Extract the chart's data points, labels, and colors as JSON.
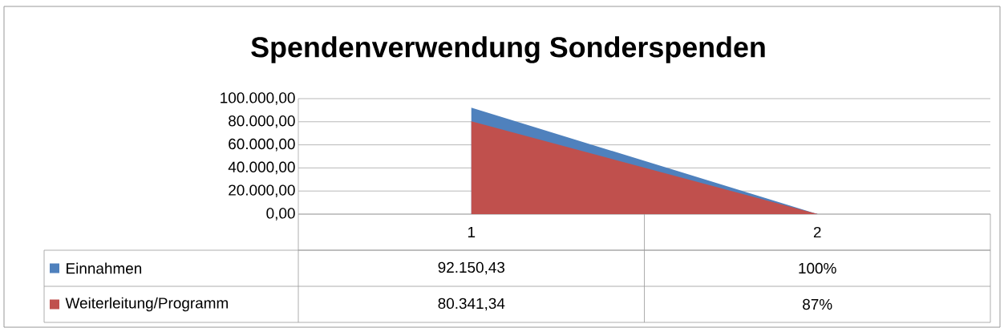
{
  "chart_data": {
    "type": "area",
    "title": "Spendenverwendung Sonderspenden",
    "categories": [
      "1",
      "2"
    ],
    "series": [
      {
        "name": "Einnahmen",
        "color": "#4f81bd",
        "values": [
          92150.43,
          100
        ],
        "value_labels": [
          "92.150,43",
          "100%"
        ]
      },
      {
        "name": "Weiterleitung/Programm",
        "color": "#c0504d",
        "values": [
          80341.34,
          87
        ],
        "value_labels": [
          "80.341,34",
          "87%"
        ]
      }
    ],
    "ylim": [
      0,
      100000
    ],
    "yticks": [
      {
        "value": 0,
        "label": "0,00"
      },
      {
        "value": 20000,
        "label": "20.000,00"
      },
      {
        "value": 40000,
        "label": "40.000,00"
      },
      {
        "value": 60000,
        "label": "60.000,00"
      },
      {
        "value": 80000,
        "label": "80.000,00"
      },
      {
        "value": 100000,
        "label": "100.000,00"
      }
    ],
    "grid": "y",
    "legend": "bottom left"
  }
}
